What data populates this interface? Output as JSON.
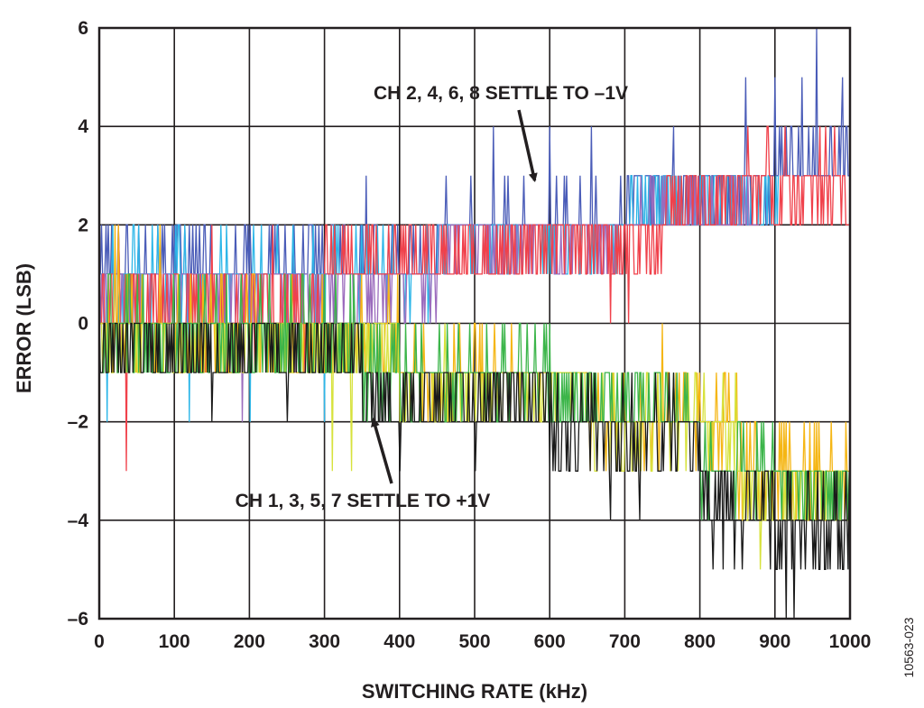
{
  "chart_data": {
    "type": "line",
    "title": "",
    "xlabel": "SWITCHING RATE (kHz)",
    "ylabel": "ERROR (LSB)",
    "xlim": [
      0,
      1000
    ],
    "ylim": [
      -6,
      6
    ],
    "x_ticks": [
      0,
      100,
      200,
      300,
      400,
      500,
      600,
      700,
      800,
      900,
      1000
    ],
    "y_ticks": [
      6,
      4,
      2,
      0,
      -2,
      -4,
      -6
    ],
    "y_tick_labels": [
      "6",
      "4",
      "2",
      "0",
      "–2",
      "–4",
      "–6"
    ],
    "grid": true,
    "annotations": [
      {
        "text": "CH 2, 4, 6, 8 SETTLE TO –1V",
        "arrow_to": [
          580,
          2.9
        ]
      },
      {
        "text": "CH 1, 3, 5, 7 SETTLE TO +1V",
        "arrow_to": [
          365,
          -1.95
        ]
      }
    ],
    "figure_id": "10563-023",
    "series": [
      {
        "name": "CH 2",
        "color": "#4a5cb8",
        "group": "even",
        "range": [
          0,
          1000
        ],
        "bands": [
          [
            0,
            0.6,
            1.8
          ],
          [
            450,
            1.5,
            2.6
          ],
          [
            700,
            2.2,
            3.2
          ],
          [
            900,
            2.5,
            4.0
          ]
        ],
        "spikes": [
          [
            355,
            3
          ],
          [
            525,
            4
          ],
          [
            600,
            4
          ],
          [
            655,
            4
          ],
          [
            765,
            4
          ],
          [
            860,
            5
          ],
          [
            900,
            5
          ],
          [
            935,
            5
          ],
          [
            955,
            6
          ],
          [
            990,
            5
          ]
        ]
      },
      {
        "name": "CH 4",
        "color": "#2db6e8",
        "group": "even",
        "range": [
          0,
          905
        ],
        "bands": [
          [
            0,
            0.4,
            1.6
          ],
          [
            450,
            1.3,
            2.3
          ],
          [
            700,
            2.0,
            2.9
          ]
        ],
        "spikes": [
          [
            10,
            -2
          ],
          [
            120,
            -2
          ],
          [
            200,
            -2
          ],
          [
            300,
            -2
          ]
        ]
      },
      {
        "name": "CH 6",
        "color": "#9b6bbd",
        "group": "even",
        "range": [
          0,
          880
        ],
        "bands": [
          [
            0,
            0.2,
            1.2
          ],
          [
            450,
            1.2,
            2.1
          ],
          [
            700,
            1.8,
            2.7
          ]
        ],
        "spikes": [
          [
            190,
            -2
          ],
          [
            260,
            -1
          ]
        ]
      },
      {
        "name": "CH 8",
        "color": "#f0414b",
        "group": "even",
        "range": [
          0,
          1000
        ],
        "bands": [
          [
            0,
            -0.6,
            1.0
          ],
          [
            300,
            0.6,
            1.9
          ],
          [
            550,
            1.0,
            2.3
          ],
          [
            750,
            1.8,
            3.1
          ],
          [
            850,
            2.0,
            3.6
          ]
        ],
        "spikes": [
          [
            35,
            -3
          ],
          [
            25,
            2
          ],
          [
            150,
            2
          ],
          [
            230,
            2
          ],
          [
            680,
            0
          ],
          [
            705,
            0
          ]
        ]
      },
      {
        "name": "CH 1",
        "color": "#f5b614",
        "group": "odd",
        "range": [
          0,
          1000
        ],
        "bands": [
          [
            0,
            -1.2,
            0.6
          ],
          [
            400,
            -1.6,
            -0.4
          ],
          [
            650,
            -2.6,
            -1.2
          ],
          [
            850,
            -3.8,
            -2.2
          ]
        ],
        "spikes": [
          [
            20,
            2
          ],
          [
            25,
            2
          ],
          [
            80,
            2
          ],
          [
            500,
            0
          ],
          [
            750,
            0
          ],
          [
            880,
            -4
          ]
        ]
      },
      {
        "name": "CH 3",
        "color": "#d7e23c",
        "group": "odd",
        "range": [
          0,
          1000
        ],
        "bands": [
          [
            0,
            -1.0,
            0.4
          ],
          [
            400,
            -1.8,
            -0.6
          ],
          [
            650,
            -2.7,
            -1.4
          ],
          [
            850,
            -4.0,
            -2.5
          ]
        ],
        "spikes": [
          [
            310,
            -3
          ],
          [
            335,
            -3
          ],
          [
            460,
            0
          ],
          [
            880,
            -5
          ]
        ]
      },
      {
        "name": "CH 5",
        "color": "#3cb54a",
        "group": "odd",
        "range": [
          0,
          1000
        ],
        "bands": [
          [
            0,
            -1.1,
            0.7
          ],
          [
            350,
            -1.7,
            -0.2
          ],
          [
            600,
            -2.5,
            -0.9
          ],
          [
            800,
            -3.6,
            -2.2
          ],
          [
            900,
            -4.0,
            -2.6
          ]
        ],
        "spikes": [
          [
            205,
            -1
          ],
          [
            560,
            0
          ],
          [
            600,
            0
          ]
        ]
      },
      {
        "name": "CH 7",
        "color": "#1a1a1a",
        "group": "odd",
        "range": [
          0,
          1000
        ],
        "bands": [
          [
            0,
            -1.4,
            0.2
          ],
          [
            350,
            -2.2,
            -0.8
          ],
          [
            600,
            -2.9,
            -1.3
          ],
          [
            800,
            -4.6,
            -2.6
          ],
          [
            900,
            -5.2,
            -3.2
          ]
        ],
        "spikes": [
          [
            150,
            -2
          ],
          [
            250,
            -2
          ],
          [
            400,
            -3
          ],
          [
            500,
            -3
          ],
          [
            600,
            -3
          ],
          [
            680,
            -4
          ],
          [
            720,
            -4
          ],
          [
            830,
            -5
          ],
          [
            905,
            -5
          ],
          [
            915,
            -6
          ],
          [
            925,
            -6
          ]
        ]
      }
    ]
  }
}
